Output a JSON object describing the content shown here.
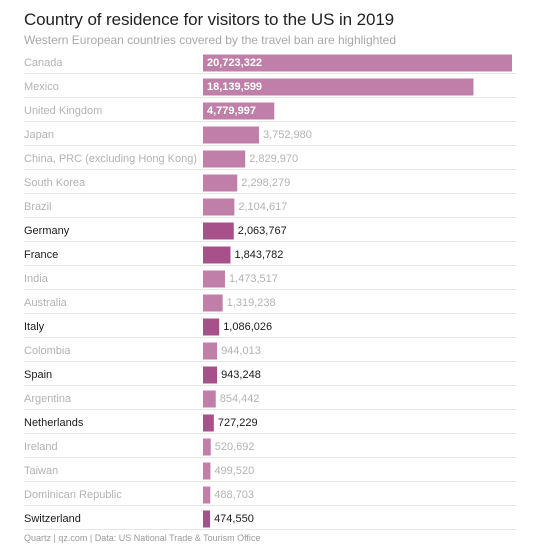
{
  "header": {
    "title": "Country of residence for visitors to the US in 2019",
    "subtitle": "Western European countries covered by the travel ban are highlighted"
  },
  "footer": {
    "source": "Quartz | qz.com | Data: US National Trade & Tourism Office"
  },
  "colors": {
    "bar_default": "#c07fa8",
    "bar_highlight": "#a8508a",
    "text_default": "#b3b3b3",
    "text_highlight": "#1a1a1a",
    "text_inside_bar": "#ffffff",
    "row_divider": "#e6e6e6"
  },
  "chart_data": {
    "type": "bar",
    "orientation": "horizontal",
    "title": "Country of residence for visitors to the US in 2019",
    "subtitle": "Western European countries covered by the travel ban are highlighted",
    "categories": [
      "Canada",
      "Mexico",
      "United Kingdom",
      "Japan",
      "China, PRC (excluding Hong Kong)",
      "South Korea",
      "Brazil",
      "Germany",
      "France",
      "India",
      "Australia",
      "Italy",
      "Colombia",
      "Spain",
      "Argentina",
      "Netherlands",
      "Ireland",
      "Taiwan",
      "Dominican Republic",
      "Switzerland"
    ],
    "values": [
      20723322,
      18139599,
      4779997,
      3752980,
      2829970,
      2298279,
      2104617,
      2063767,
      1843782,
      1473517,
      1319238,
      1086026,
      944013,
      943248,
      854442,
      727229,
      520692,
      499520,
      488703,
      474550
    ],
    "value_labels": [
      "20,723,322",
      "18,139,599",
      "4,779,997",
      "3,752,980",
      "2,829,970",
      "2,298,279",
      "2,104,617",
      "2,063,767",
      "1,843,782",
      "1,473,517",
      "1,319,238",
      "1,086,026",
      "944,013",
      "943,248",
      "854,442",
      "727,229",
      "520,692",
      "499,520",
      "488,703",
      "474,550"
    ],
    "highlighted": [
      false,
      false,
      false,
      false,
      false,
      false,
      false,
      true,
      true,
      false,
      false,
      true,
      false,
      true,
      false,
      true,
      false,
      false,
      false,
      true
    ],
    "xlim": [
      0,
      20723322
    ]
  }
}
